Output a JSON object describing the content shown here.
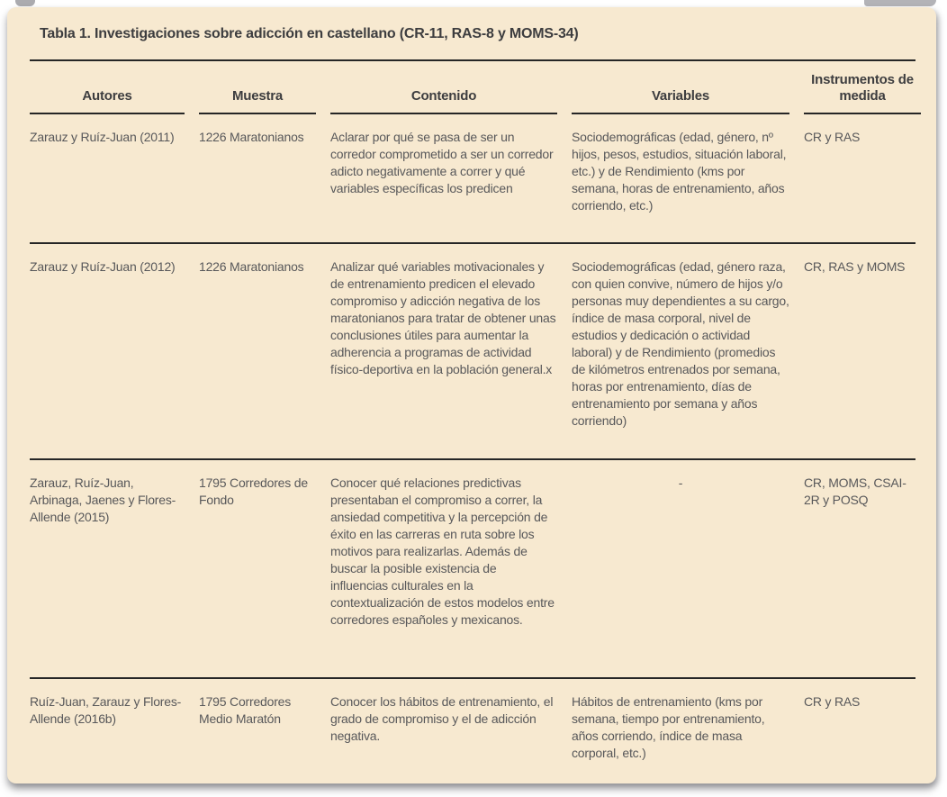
{
  "colors": {
    "panel_background": "#f7e9d0",
    "body_text": "#58585a",
    "heading_text": "#3d3d3f",
    "rule": "#262626",
    "page_background": "#ffffff"
  },
  "table": {
    "title": "Tabla 1. Investigaciones sobre adicción en castellano (CR-11, RAS-8 y MOMS-34)",
    "columns": [
      "Autores",
      "Muestra",
      "Contenido",
      "Variables",
      "Instrumentos de medida"
    ],
    "rows": [
      {
        "autores": "Zarauz y Ruíz-Juan (2011)",
        "muestra": "1226 Maratonianos",
        "contenido": "Aclarar por qué se pasa de ser un corredor comprometido a ser un corredor adicto negativamente a correr y qué variables específicas los predicen",
        "variables": "Sociodemográficas (edad, género, nº hijos, pesos, estudios, situación laboral, etc.) y de Rendimiento (kms por semana, horas de entrenamiento, años corriendo, etc.)",
        "instrumentos": "CR y RAS"
      },
      {
        "autores": "Zarauz y Ruíz-Juan (2012)",
        "muestra": "1226 Maratonianos",
        "contenido": "Analizar qué variables motivacionales y de entrenamiento predicen el elevado compromiso y adicción negativa de los maratonianos para tratar de obtener unas conclusiones útiles para aumentar la adherencia a programas de actividad físico-deportiva en la población general.x",
        "variables": "Sociodemográficas (edad, género raza, con quien convive, número de hijos y/o personas muy dependientes a su cargo, índice de masa corporal, nivel de estudios y dedicación o actividad laboral) y de Rendimiento (promedios de kilómetros entrenados por semana, horas por entrenamiento, días de entrenamiento por semana y años corriendo)",
        "instrumentos": "CR, RAS y MOMS"
      },
      {
        "autores": "Zarauz, Ruíz-Juan, Arbinaga, Jaenes y Flores-Allende (2015)",
        "muestra": "1795 Corredores de Fondo",
        "contenido": "Conocer qué relaciones predictivas presentaban el compromiso a correr, la ansiedad competitiva y la percepción de éxito en las carreras en ruta sobre los motivos para realizarlas. Además de buscar la posible existencia de influencias culturales en la contextualización de estos modelos entre corredores españoles y mexicanos.",
        "variables": "-",
        "instrumentos": "CR, MOMS, CSAI-2R y POSQ"
      },
      {
        "autores": "Ruíz-Juan, Zarauz y Flores-Allende (2016b)",
        "muestra": "1795 Corredores Medio Maratón",
        "contenido": "Conocer los hábitos de entrenamiento, el grado de compromiso y el de adicción negativa.",
        "variables": "Hábitos de entrenamiento (kms por semana, tiempo por entrenamiento, años corriendo, índice de masa corporal, etc.)",
        "instrumentos": "CR y RAS"
      }
    ]
  }
}
